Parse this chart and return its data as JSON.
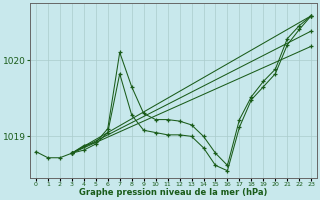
{
  "bg_color": "#c8e8ec",
  "line_color": "#1a5c1a",
  "xlabel": "Graphe pression niveau de la mer (hPa)",
  "xlim": [
    -0.5,
    23.5
  ],
  "ylim": [
    1018.45,
    1020.75
  ],
  "yticks": [
    1019,
    1020
  ],
  "xticks": [
    0,
    1,
    2,
    3,
    4,
    5,
    6,
    7,
    8,
    9,
    10,
    11,
    12,
    13,
    14,
    15,
    16,
    17,
    18,
    19,
    20,
    21,
    22,
    23
  ],
  "lines": [
    {
      "x": [
        0,
        1,
        2,
        3,
        4,
        5,
        6,
        7,
        8,
        9,
        10,
        11,
        12,
        13,
        14,
        15,
        16,
        17,
        18,
        19,
        20,
        21,
        22,
        23
      ],
      "y": [
        1018.8,
        1018.72,
        1018.72,
        1018.78,
        1018.88,
        1018.92,
        1019.1,
        1020.1,
        1019.65,
        1019.3,
        1019.22,
        1019.22,
        1019.2,
        1019.15,
        1019.0,
        1018.78,
        1018.62,
        1019.22,
        1019.52,
        1019.72,
        1019.88,
        1020.28,
        1020.45,
        1020.58
      ]
    },
    {
      "x": [
        3,
        4,
        5,
        6,
        7,
        8,
        9,
        10,
        11,
        12,
        13,
        14,
        15,
        16,
        17,
        18,
        19,
        20,
        21,
        22,
        23
      ],
      "y": [
        1018.78,
        1018.82,
        1018.9,
        1019.05,
        1019.82,
        1019.28,
        1019.08,
        1019.05,
        1019.02,
        1019.02,
        1019.0,
        1018.85,
        1018.62,
        1018.55,
        1019.12,
        1019.48,
        1019.65,
        1019.82,
        1020.2,
        1020.4,
        1020.58
      ]
    },
    {
      "x": [
        3,
        23
      ],
      "y": [
        1018.78,
        1020.58
      ]
    },
    {
      "x": [
        3,
        23
      ],
      "y": [
        1018.78,
        1020.38
      ]
    },
    {
      "x": [
        3,
        23
      ],
      "y": [
        1018.78,
        1020.18
      ]
    }
  ]
}
